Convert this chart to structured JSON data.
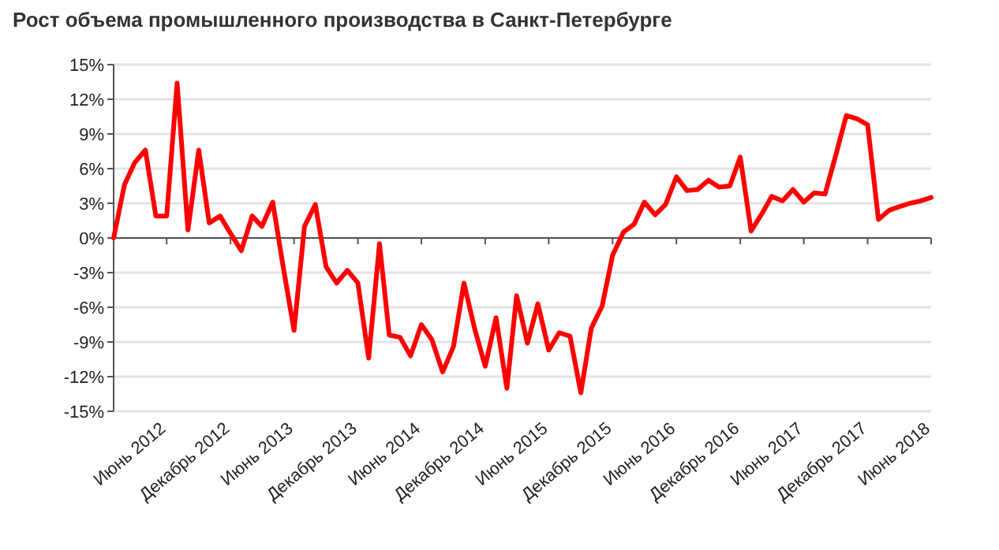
{
  "chart_data": {
    "type": "line",
    "title": "Рост объема промышленного производства в Санкт-Петербурге",
    "x": [
      "2012-01",
      "2012-02",
      "2012-03",
      "2012-04",
      "2012-05",
      "2012-06",
      "2012-07",
      "2012-08",
      "2012-09",
      "2012-10",
      "2012-11",
      "2012-12",
      "2013-01",
      "2013-02",
      "2013-03",
      "2013-04",
      "2013-05",
      "2013-06",
      "2013-07",
      "2013-08",
      "2013-09",
      "2013-10",
      "2013-11",
      "2013-12",
      "2014-01",
      "2014-02",
      "2014-03",
      "2014-04",
      "2014-05",
      "2014-06",
      "2014-07",
      "2014-08",
      "2014-09",
      "2014-10",
      "2014-11",
      "2014-12",
      "2015-01",
      "2015-02",
      "2015-03",
      "2015-04",
      "2015-05",
      "2015-06",
      "2015-07",
      "2015-08",
      "2015-09",
      "2015-10",
      "2015-11",
      "2015-12",
      "2016-01",
      "2016-02",
      "2016-03",
      "2016-04",
      "2016-05",
      "2016-06",
      "2016-07",
      "2016-08",
      "2016-09",
      "2016-10",
      "2016-11",
      "2016-12",
      "2017-01",
      "2017-02",
      "2017-03",
      "2017-04",
      "2017-05",
      "2017-06",
      "2017-07",
      "2017-08",
      "2017-09",
      "2017-10",
      "2017-11",
      "2017-12",
      "2018-01",
      "2018-02",
      "2018-03",
      "2018-04",
      "2018-05",
      "2018-06"
    ],
    "series": [
      {
        "color": "#ff0000",
        "values": [
          0,
          4.6,
          6.5,
          7.6,
          1.9,
          1.9,
          13.4,
          0.7,
          7.6,
          1.3,
          1.9,
          0.4,
          -1.1,
          1.9,
          1.0,
          3.1,
          -2.5,
          -8.0,
          1.0,
          2.9,
          -2.5,
          -3.9,
          -2.8,
          -3.9,
          -10.4,
          -0.5,
          -8.4,
          -8.6,
          -10.2,
          -7.5,
          -8.8,
          -11.6,
          -9.4,
          -3.9,
          -7.9,
          -11.1,
          -6.9,
          -13.0,
          -5.0,
          -9.1,
          -5.7,
          -9.7,
          -8.2,
          -8.5,
          -13.4,
          -7.8,
          -5.9,
          -1.5,
          0.5,
          1.2,
          3.1,
          2.0,
          2.9,
          5.3,
          4.1,
          4.2,
          5.0,
          4.4,
          4.5,
          7.0,
          0.6,
          2.1,
          3.6,
          3.2,
          4.2,
          3.1,
          3.9,
          3.8,
          7.2,
          10.6,
          10.3,
          9.8,
          1.6,
          2.4,
          2.7,
          3.0,
          3.2,
          3.5
        ]
      }
    ],
    "xlim": [
      "2012-01",
      "2018-06"
    ],
    "xticks": [
      {
        "value": "2012-06",
        "label": "Июнь 2012"
      },
      {
        "value": "2012-12",
        "label": "Декабрь 2012"
      },
      {
        "value": "2013-06",
        "label": "Июнь 2013"
      },
      {
        "value": "2013-12",
        "label": "Декабрь 2013"
      },
      {
        "value": "2014-06",
        "label": "Июнь 2014"
      },
      {
        "value": "2014-12",
        "label": "Декабрь 2014"
      },
      {
        "value": "2015-06",
        "label": "Июнь 2015"
      },
      {
        "value": "2015-12",
        "label": "Декабрь 2015"
      },
      {
        "value": "2016-06",
        "label": "Июнь 2016"
      },
      {
        "value": "2016-12",
        "label": "Декабрь 2016"
      },
      {
        "value": "2017-06",
        "label": "Июнь 2017"
      },
      {
        "value": "2017-12",
        "label": "Декабрь 2017"
      },
      {
        "value": "2018-06",
        "label": "Июнь 2018"
      }
    ],
    "ylim": [
      -15,
      15
    ],
    "yticks": [
      {
        "value": 15,
        "label": "15%"
      },
      {
        "value": 12,
        "label": "12%"
      },
      {
        "value": 9,
        "label": "9%"
      },
      {
        "value": 6,
        "label": "6%"
      },
      {
        "value": 3,
        "label": "3%"
      },
      {
        "value": 0,
        "label": "0%"
      },
      {
        "value": -3,
        "label": "-3%"
      },
      {
        "value": -6,
        "label": "-6%"
      },
      {
        "value": -9,
        "label": "-9%"
      },
      {
        "value": -12,
        "label": "-12%"
      },
      {
        "value": -15,
        "label": "-15%"
      }
    ],
    "grid": "y",
    "marker": "none",
    "line_style": "solid"
  }
}
